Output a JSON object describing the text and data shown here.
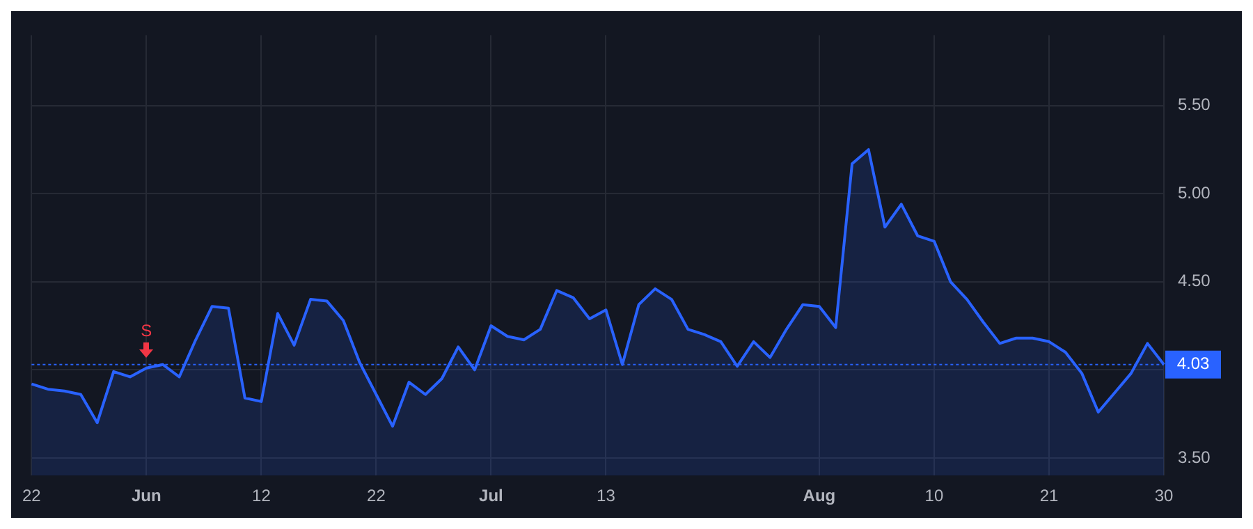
{
  "chart_data": {
    "type": "area",
    "categories": [
      "22",
      null,
      null,
      null,
      null,
      null,
      null,
      "Jun",
      null,
      null,
      null,
      null,
      null,
      null,
      "12",
      null,
      null,
      null,
      null,
      null,
      null,
      "22",
      null,
      null,
      null,
      null,
      null,
      null,
      "Jul",
      null,
      null,
      null,
      null,
      null,
      null,
      "13",
      null,
      null,
      null,
      null,
      null,
      null,
      null,
      null,
      null,
      null,
      null,
      null,
      "Aug",
      null,
      null,
      null,
      null,
      null,
      null,
      "10",
      null,
      null,
      null,
      null,
      null,
      null,
      "21",
      null,
      null,
      null,
      null,
      null,
      null,
      "30"
    ],
    "series": [
      {
        "color": "#2962ff",
        "values": [
          3.92,
          3.89,
          3.88,
          3.86,
          3.7,
          3.99,
          3.96,
          4.01,
          4.03,
          3.96,
          4.17,
          4.36,
          4.35,
          3.84,
          3.82,
          4.32,
          4.14,
          4.4,
          4.39,
          4.28,
          4.04,
          3.86,
          3.68,
          3.93,
          3.86,
          3.95,
          4.13,
          4.0,
          4.25,
          4.19,
          4.17,
          4.23,
          4.45,
          4.41,
          4.29,
          4.34,
          4.03,
          4.37,
          4.46,
          4.4,
          4.23,
          4.2,
          4.16,
          4.02,
          4.16,
          4.07,
          4.23,
          4.37,
          4.36,
          4.24,
          5.17,
          5.25,
          4.81,
          4.94,
          4.76,
          4.73,
          4.5,
          4.4,
          4.27,
          4.15,
          4.18,
          4.18,
          4.16,
          4.1,
          3.98,
          3.76,
          3.87,
          3.98,
          4.15,
          4.03
        ]
      }
    ],
    "ylim": [
      3.4,
      5.9
    ],
    "yticks": [
      {
        "value": 3.5,
        "label": "3.50"
      },
      {
        "value": 4,
        "label": null
      },
      {
        "value": 4.5,
        "label": "4.50"
      },
      {
        "value": 5,
        "label": "5.00"
      },
      {
        "value": 5.5,
        "label": "5.50"
      }
    ],
    "ref_lines": [
      {
        "axis": "y",
        "value": 4.03,
        "label": "4.03",
        "color": "#2962ff",
        "line_style": "dotted"
      }
    ],
    "annotations": [
      {
        "text": "S",
        "x": "Jun",
        "y": 4.01
      }
    ],
    "grid": true,
    "legend": false,
    "marker": "none",
    "line_style": "solid"
  }
}
